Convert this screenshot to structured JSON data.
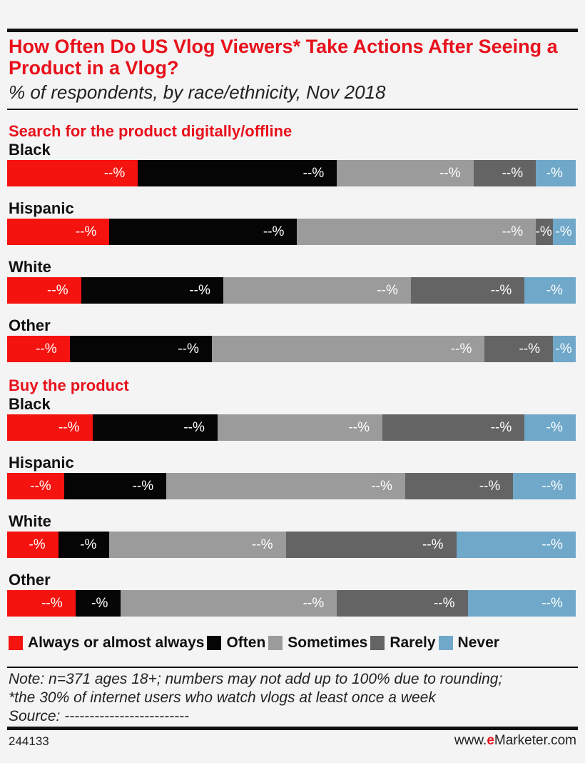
{
  "header": {
    "title": "How Often Do US Vlog Viewers* Take Actions After Seeing a Product in a Vlog?",
    "subtitle": "% of respondents, by race/ethnicity, Nov 2018"
  },
  "colors": {
    "always": "#f5130f",
    "often": "#050505",
    "sometimes": "#9b9b9b",
    "rarely": "#646464",
    "never": "#6fa8c9"
  },
  "legend": [
    {
      "key": "always",
      "label": "Always or almost always"
    },
    {
      "key": "often",
      "label": "Often"
    },
    {
      "key": "sometimes",
      "label": "Sometimes"
    },
    {
      "key": "rarely",
      "label": "Rarely"
    },
    {
      "key": "never",
      "label": "Never"
    }
  ],
  "chart_data": {
    "type": "bar",
    "orientation": "horizontal",
    "stacked": true,
    "series_order": [
      "Always or almost always",
      "Often",
      "Sometimes",
      "Rarely",
      "Never"
    ],
    "sections": [
      {
        "title": "Search for the product digitally/offline",
        "groups": [
          {
            "label": "Black",
            "values": [
              23,
              35,
              24,
              11,
              7
            ],
            "labels": [
              "--%",
              "--%",
              "--%",
              "--%",
              "-%"
            ]
          },
          {
            "label": "Hispanic",
            "values": [
              18,
              33,
              42,
              3,
              4
            ],
            "labels": [
              "--%",
              "--%",
              "--%",
              "-%",
              "-%"
            ]
          },
          {
            "label": "White",
            "values": [
              13,
              25,
              33,
              20,
              9
            ],
            "labels": [
              "--%",
              "--%",
              "--%",
              "--%",
              "-%"
            ]
          },
          {
            "label": "Other",
            "values": [
              11,
              25,
              48,
              12,
              4
            ],
            "labels": [
              "--%",
              "--%",
              "--%",
              "--%",
              "-%"
            ]
          }
        ]
      },
      {
        "title": "Buy the product",
        "groups": [
          {
            "label": "Black",
            "values": [
              15,
              22,
              29,
              25,
              9
            ],
            "labels": [
              "--%",
              "--%",
              "--%",
              "--%",
              "-%"
            ]
          },
          {
            "label": "Hispanic",
            "values": [
              10,
              18,
              42,
              19,
              11
            ],
            "labels": [
              "--%",
              "--%",
              "--%",
              "--%",
              "--%"
            ]
          },
          {
            "label": "White",
            "values": [
              9,
              9,
              31,
              30,
              21
            ],
            "labels": [
              "-%",
              "-%",
              "--%",
              "--%",
              "--%"
            ]
          },
          {
            "label": "Other",
            "values": [
              12,
              8,
              38,
              23,
              19
            ],
            "labels": [
              "--%",
              "-%",
              "--%",
              "--%",
              "--%"
            ]
          }
        ]
      }
    ]
  },
  "note": {
    "line1": "Note: n=371 ages 18+; numbers may not add up to 100% due to rounding;",
    "line2": "*the 30% of internet users who watch vlogs at least once a week",
    "line3": "Source: -------------------------"
  },
  "footer": {
    "id": "244133",
    "brand_prefix": "www.",
    "brand_bold": "e",
    "brand_rest": "Marketer.com"
  }
}
